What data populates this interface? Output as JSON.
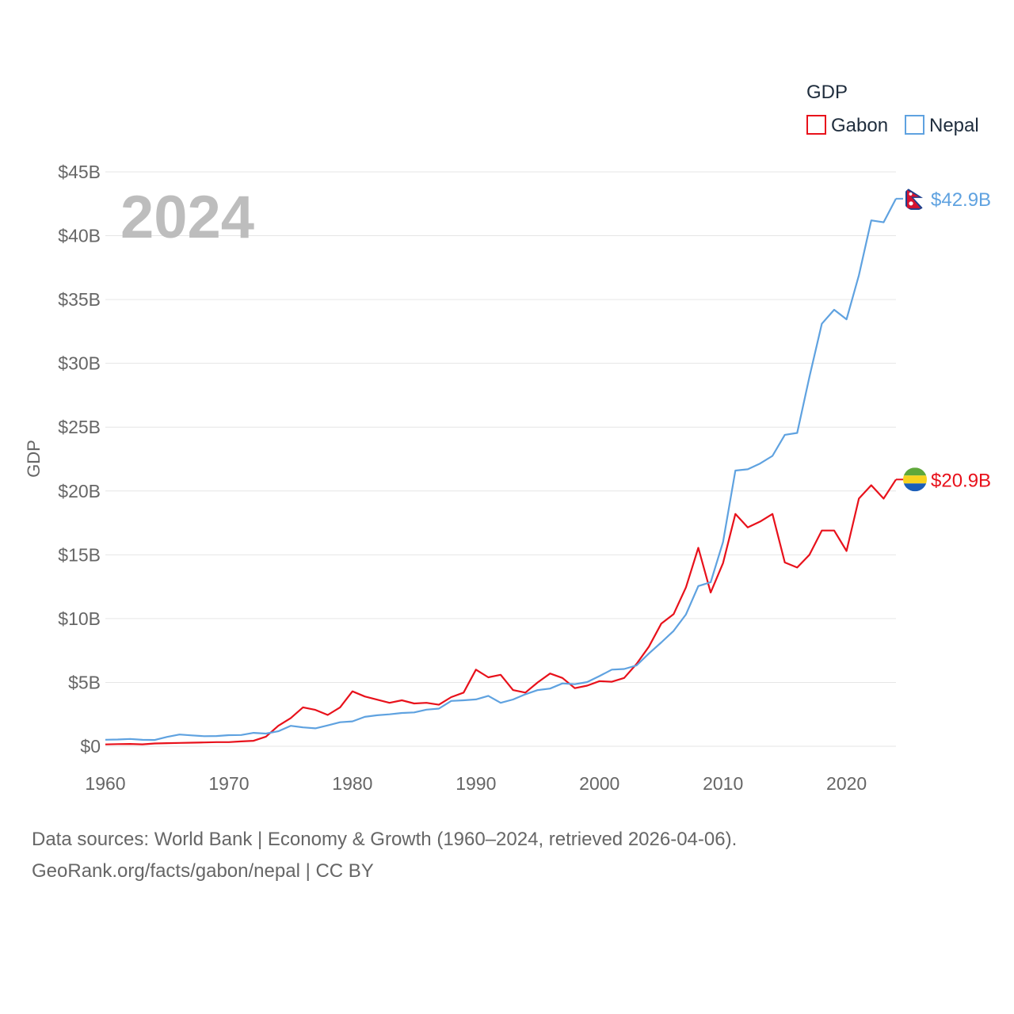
{
  "chart_data": {
    "type": "line",
    "title": "",
    "year_label": "2024",
    "ylabel": "GDP",
    "xlabel": "",
    "xlim": [
      1960,
      2024
    ],
    "ylim": [
      0,
      45
    ],
    "x_ticks": [
      1960,
      1970,
      1980,
      1990,
      2000,
      2010,
      2020
    ],
    "x_tick_labels": [
      "1960",
      "1970",
      "1980",
      "1990",
      "2000",
      "2010",
      "2020"
    ],
    "y_ticks": [
      0,
      5,
      10,
      15,
      20,
      25,
      30,
      35,
      40,
      45
    ],
    "y_tick_labels": [
      "$0",
      "$5B",
      "$10B",
      "$15B",
      "$20B",
      "$25B",
      "$30B",
      "$35B",
      "$40B",
      "$45B"
    ],
    "legend": {
      "title": "GDP",
      "position": "top-right"
    },
    "x": [
      1960,
      1961,
      1962,
      1963,
      1964,
      1965,
      1966,
      1967,
      1968,
      1969,
      1970,
      1971,
      1972,
      1973,
      1974,
      1975,
      1976,
      1977,
      1978,
      1979,
      1980,
      1981,
      1982,
      1983,
      1984,
      1985,
      1986,
      1987,
      1988,
      1989,
      1990,
      1991,
      1992,
      1993,
      1994,
      1995,
      1996,
      1997,
      1998,
      1999,
      2000,
      2001,
      2002,
      2003,
      2004,
      2005,
      2006,
      2007,
      2008,
      2009,
      2010,
      2011,
      2012,
      2013,
      2014,
      2015,
      2016,
      2017,
      2018,
      2019,
      2020,
      2021,
      2022,
      2023,
      2024
    ],
    "series": [
      {
        "name": "Gabon",
        "color": "#e8111b",
        "end_label": "$20.9B",
        "flag": "gabon",
        "values": [
          0.14,
          0.17,
          0.18,
          0.15,
          0.22,
          0.24,
          0.26,
          0.28,
          0.3,
          0.32,
          0.32,
          0.38,
          0.43,
          0.75,
          1.6,
          2.2,
          3.05,
          2.85,
          2.45,
          3.05,
          4.3,
          3.9,
          3.65,
          3.4,
          3.6,
          3.35,
          3.4,
          3.25,
          3.85,
          4.2,
          6.0,
          5.4,
          5.6,
          4.4,
          4.2,
          5.0,
          5.7,
          5.35,
          4.55,
          4.75,
          5.1,
          5.05,
          5.35,
          6.45,
          7.8,
          9.6,
          10.35,
          12.45,
          15.55,
          12.05,
          14.35,
          18.2,
          17.15,
          17.6,
          18.2,
          14.4,
          14.0,
          15.0,
          16.9,
          16.9,
          15.3,
          19.4,
          20.45,
          19.4,
          20.9
        ]
      },
      {
        "name": "Nepal",
        "color": "#5fa2e0",
        "end_label": "$42.9B",
        "flag": "nepal",
        "values": [
          0.51,
          0.53,
          0.57,
          0.5,
          0.49,
          0.73,
          0.92,
          0.85,
          0.79,
          0.8,
          0.87,
          0.88,
          1.05,
          0.99,
          1.17,
          1.6,
          1.48,
          1.4,
          1.63,
          1.88,
          1.95,
          2.3,
          2.43,
          2.5,
          2.61,
          2.65,
          2.87,
          2.95,
          3.55,
          3.6,
          3.67,
          3.95,
          3.4,
          3.66,
          4.07,
          4.4,
          4.52,
          4.92,
          4.86,
          5.03,
          5.5,
          6.0,
          6.05,
          6.33,
          7.27,
          8.13,
          9.04,
          10.33,
          12.55,
          12.85,
          16.0,
          21.6,
          21.7,
          22.15,
          22.75,
          24.4,
          24.55,
          28.95,
          33.1,
          34.2,
          33.45,
          36.9,
          41.2,
          41.05,
          42.9
        ]
      }
    ]
  },
  "source": {
    "line1": "Data sources: World Bank | Economy & Growth (1960–2024, retrieved 2026-04-06).",
    "line2": "GeoRank.org/facts/gabon/nepal | CC BY"
  }
}
